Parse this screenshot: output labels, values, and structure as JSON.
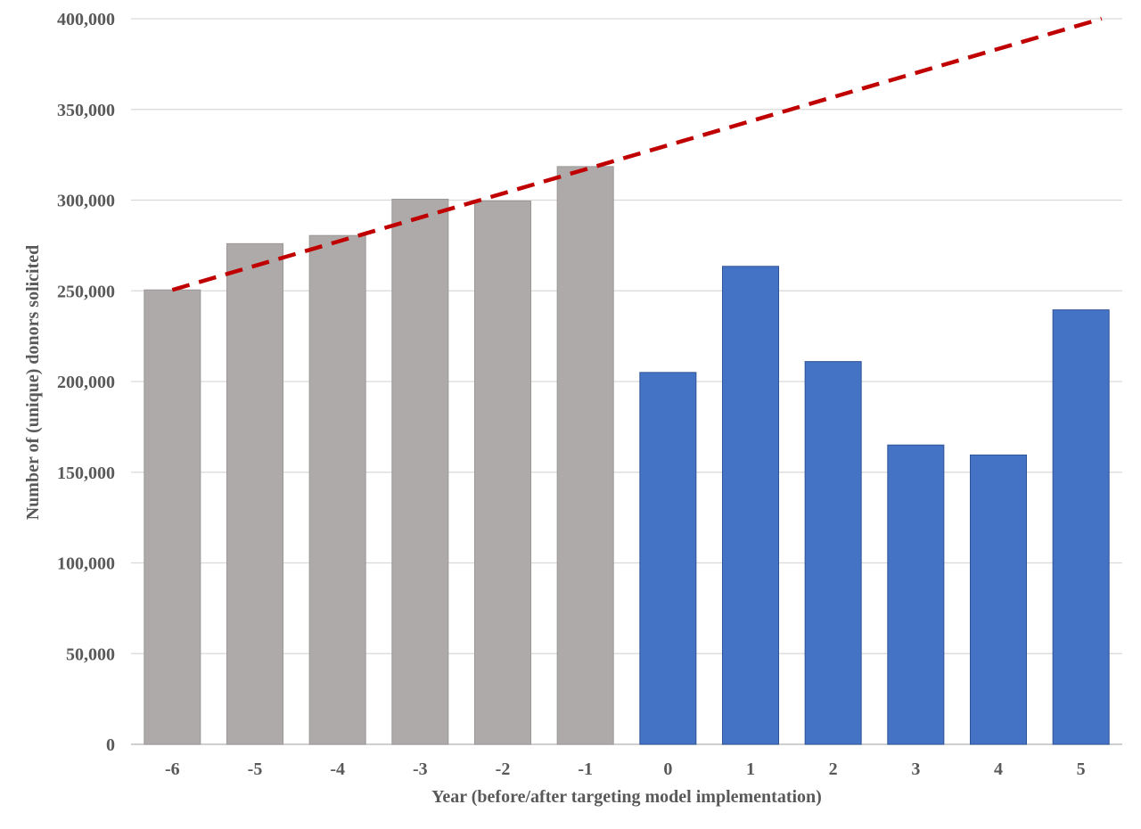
{
  "chart_data": {
    "type": "bar",
    "title": "",
    "xlabel": "Year (before/after targeting model implementation)",
    "ylabel": "Number of (unique) donors solicited",
    "ylim": [
      0,
      400000
    ],
    "yticks": [
      0,
      50000,
      100000,
      150000,
      200000,
      250000,
      300000,
      350000,
      400000
    ],
    "ytick_labels": [
      "0",
      "50,000",
      "100,000",
      "150,000",
      "200,000",
      "250,000",
      "300,000",
      "350,000",
      "400,000"
    ],
    "categories": [
      "-6",
      "-5",
      "-4",
      "-3",
      "-2",
      "-1",
      "0",
      "1",
      "2",
      "3",
      "4",
      "5"
    ],
    "values": [
      250500,
      276000,
      280500,
      300500,
      299500,
      318500,
      205000,
      263500,
      211000,
      165000,
      159500,
      239500
    ],
    "bar_colors": [
      "#aeaaaa",
      "#aeaaaa",
      "#aeaaaa",
      "#aeaaaa",
      "#aeaaaa",
      "#aeaaaa",
      "#4472c4",
      "#4472c4",
      "#4472c4",
      "#4472c4",
      "#4472c4",
      "#4472c4"
    ],
    "trend_line": {
      "style": "dashed",
      "color": "#c00000",
      "x_start": "-6",
      "y_start": 250500,
      "x_end": "5",
      "y_end": 400000
    },
    "grid": true,
    "legend": "none"
  }
}
